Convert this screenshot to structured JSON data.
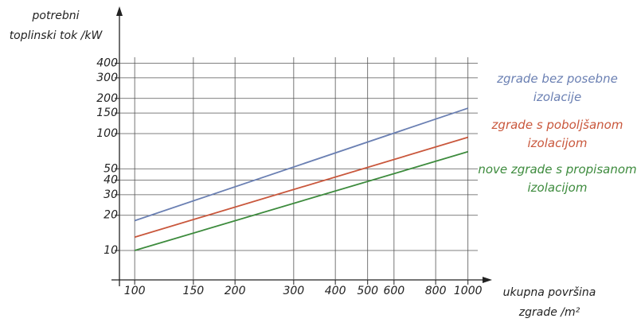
{
  "chart_data": {
    "type": "line",
    "y_label": [
      "potrebni",
      "toplinski tok /kW"
    ],
    "x_label": [
      "ukupna površina",
      "zgrade /m²"
    ],
    "x": [
      100,
      1000
    ],
    "series": [
      {
        "name": "zgrade bez posebne izolacije",
        "color": "#6b80b3",
        "values": [
          18,
          165
        ]
      },
      {
        "name": "zgrade s poboljšanom izolacijom",
        "color": "#c9573c",
        "values": [
          13,
          93
        ]
      },
      {
        "name": "nove zgrade s propisanom izolacijom",
        "color": "#3d8b3d",
        "values": [
          10,
          70
        ]
      }
    ],
    "xlog": true,
    "ylog": true,
    "xlim": [
      90,
      1070
    ],
    "ylim": [
      5.6,
      450
    ],
    "xticks": [
      100,
      150,
      200,
      300,
      400,
      500,
      600,
      800,
      1000
    ],
    "yticks": [
      10,
      20,
      30,
      40,
      50,
      100,
      150,
      200,
      300,
      400
    ],
    "grid": true
  }
}
